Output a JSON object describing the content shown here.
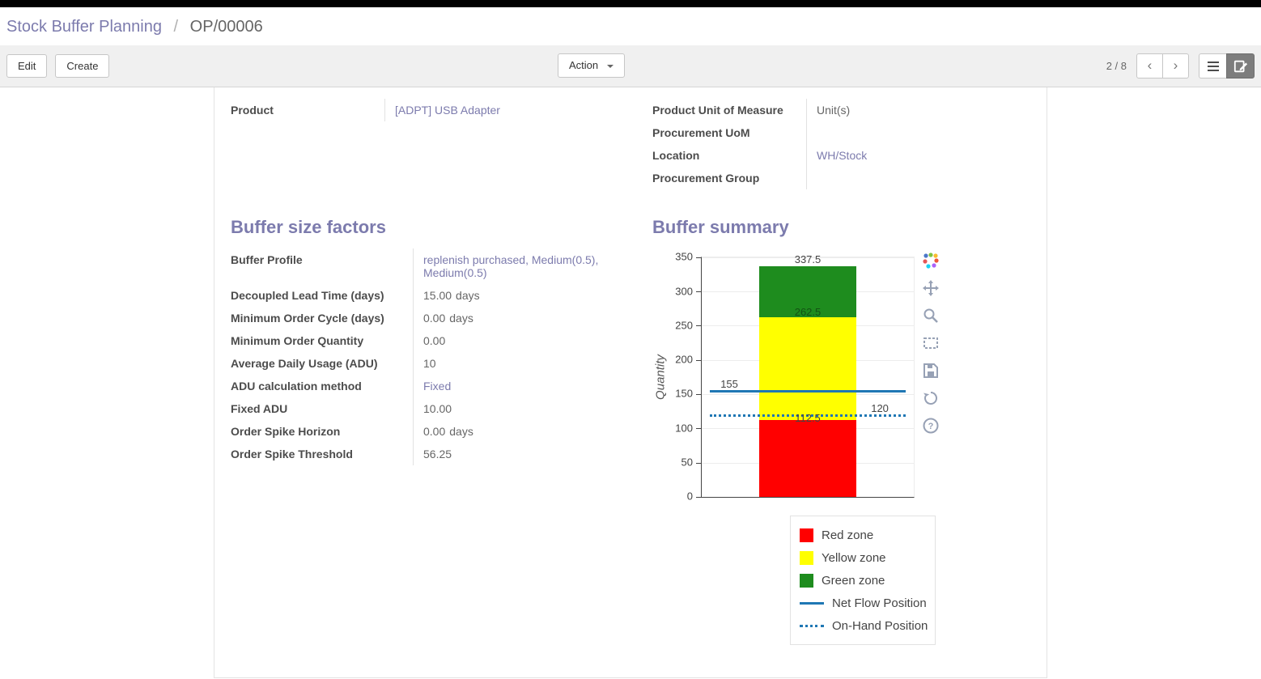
{
  "colors": {
    "accent": "#7c7bad",
    "link": "#7c7bad",
    "red_zone": "#ff0000",
    "yellow_zone": "#ffff00",
    "green_zone": "#1e8c1e",
    "flow_line": "#1f77b4"
  },
  "breadcrumb": {
    "parent": "Stock Buffer Planning",
    "separator": "/",
    "current": "OP/00006"
  },
  "toolbar": {
    "edit_label": "Edit",
    "create_label": "Create",
    "action_label": "Action",
    "pager": "2 / 8",
    "view_switcher": {
      "views": [
        "list",
        "form"
      ],
      "active": "form"
    }
  },
  "form": {
    "info_group_left": {
      "rows": [
        {
          "label": "Product",
          "value": "[ADPT] USB Adapter"
        }
      ]
    },
    "info_group_right": {
      "rows": [
        {
          "label": "Product Unit of Measure",
          "value": "Unit(s)"
        },
        {
          "label": "Procurement UoM",
          "value": ""
        },
        {
          "label": "Location",
          "value": "WH/Stock"
        },
        {
          "label": "Procurement Group",
          "value": ""
        }
      ]
    },
    "buffer_factors": {
      "title": "Buffer size factors",
      "rows": [
        {
          "label": "Buffer Profile",
          "value": "replenish purchased, Medium(0.5), Medium(0.5)"
        },
        {
          "label": "Decoupled Lead Time (days)",
          "value": "15.00",
          "suffix": "days"
        },
        {
          "label": "Minimum Order Cycle (days)",
          "value": "0.00",
          "suffix": "days"
        },
        {
          "label": "Minimum Order Quantity",
          "value": "0.00"
        },
        {
          "label": "Average Daily Usage (ADU)",
          "value": "10"
        },
        {
          "label": "ADU calculation method",
          "value": "Fixed"
        },
        {
          "label": "Fixed ADU",
          "value": "10.00"
        },
        {
          "label": "Order Spike Horizon",
          "value": "0.00",
          "suffix": "days"
        },
        {
          "label": "Order Spike Threshold",
          "value": "56.25"
        }
      ]
    },
    "buffer_summary": {
      "title": "Buffer summary"
    }
  },
  "chart_data": {
    "type": "bar",
    "title": "",
    "xlabel": "",
    "ylabel": "Quantity",
    "ylim": [
      0,
      350
    ],
    "yticks": [
      0,
      50,
      100,
      150,
      200,
      250,
      300,
      350
    ],
    "grid": true,
    "zones": [
      {
        "name": "Red zone",
        "from": 0,
        "to": 112.5,
        "color": "#ff0000"
      },
      {
        "name": "Yellow zone",
        "from": 112.5,
        "to": 262.5,
        "color": "#ffff00"
      },
      {
        "name": "Green zone",
        "from": 262.5,
        "to": 337.5,
        "color": "#1e8c1e"
      }
    ],
    "lines": [
      {
        "name": "Net Flow Position",
        "value": 155,
        "style": "solid",
        "color": "#1f77b4"
      },
      {
        "name": "On-Hand Position",
        "value": 120,
        "style": "dotted",
        "color": "#1f77b4"
      }
    ],
    "annotations": [
      {
        "text": "337.5",
        "value": 337.5,
        "x": 0.5,
        "dy": -16,
        "color": "#444444"
      },
      {
        "text": "262.5",
        "value": 262.5,
        "x": 0.5,
        "dy": -14,
        "color": "#145214"
      },
      {
        "text": "155",
        "value": 155,
        "x": 0.13,
        "dy": -16,
        "color": "#444444"
      },
      {
        "text": "112.5",
        "value": 112.5,
        "x": 0.5,
        "dy": -10,
        "color": "#444444"
      },
      {
        "text": "120",
        "value": 120,
        "x": 0.84,
        "dy": -16,
        "color": "#444444"
      }
    ],
    "legend": [
      {
        "label": "Red zone",
        "swatch": "rect",
        "color": "#ff0000"
      },
      {
        "label": "Yellow zone",
        "swatch": "rect",
        "color": "#ffff00"
      },
      {
        "label": "Green zone",
        "swatch": "rect",
        "color": "#1e8c1e"
      },
      {
        "label": "Net Flow Position",
        "swatch": "line",
        "color": "#1f77b4"
      },
      {
        "label": "On-Hand Position",
        "swatch": "dotted-line",
        "color": "#1f77b4"
      }
    ],
    "legend_position": "bottom-right",
    "modebar_icons": [
      "plotly-logo",
      "pan",
      "zoom",
      "box-select",
      "save",
      "autoscale",
      "help"
    ]
  }
}
